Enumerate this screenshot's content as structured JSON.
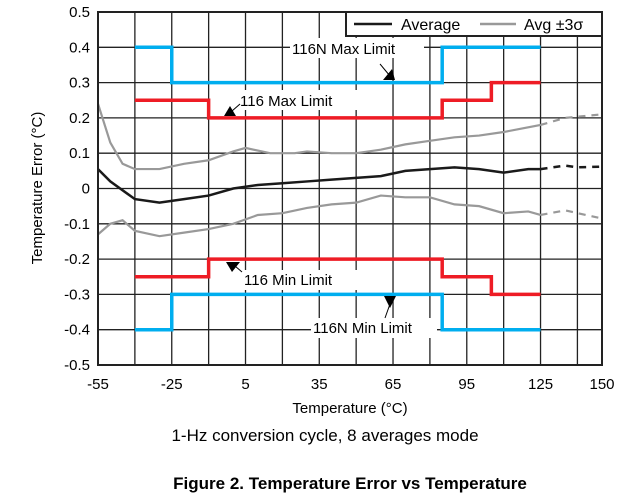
{
  "chart_data": {
    "type": "line",
    "title": "Figure 2. Temperature Error vs Temperature",
    "subtitle": "1-Hz conversion cycle, 8 averages mode",
    "xlabel": "Temperature (°C)",
    "ylabel": "Temperature Error (°C)",
    "xlim": [
      -55,
      150
    ],
    "ylim": [
      -0.5,
      0.5
    ],
    "xticks": [
      -55,
      -25,
      5,
      35,
      65,
      95,
      125,
      150
    ],
    "xgrid_step": 15,
    "yticks": [
      0.5,
      0.4,
      0.3,
      0.2,
      0.1,
      0,
      -0.1,
      -0.2,
      -0.3,
      -0.4,
      -0.5
    ],
    "ytick_labels": [
      "0.5",
      "0.4",
      "0.3",
      "0.2",
      "0.1",
      "0",
      "-0.1",
      "-0.2",
      "-0.3",
      "-0.4",
      "-0.5"
    ],
    "grid": true,
    "legend": {
      "placement": "top-right",
      "entries": [
        {
          "label": "Average",
          "color": "#1a1a1a"
        },
        {
          "label": "Avg ±3σ",
          "color": "#999999"
        }
      ]
    },
    "series": [
      {
        "name": "Average",
        "color": "#1a1a1a",
        "x": [
          -55,
          -50,
          -40,
          -30,
          -20,
          -10,
          0,
          10,
          20,
          30,
          40,
          50,
          60,
          70,
          80,
          90,
          100,
          110,
          120,
          125
        ],
        "y": [
          0.055,
          0.02,
          -0.03,
          -0.04,
          -0.03,
          -0.02,
          0,
          0.01,
          0.015,
          0.02,
          0.025,
          0.03,
          0.035,
          0.05,
          0.055,
          0.06,
          0.055,
          0.045,
          0.055,
          0.055
        ],
        "extrapolated": {
          "x": [
            125,
            135,
            140,
            150
          ],
          "y": [
            0.055,
            0.065,
            0.06,
            0.062
          ]
        }
      },
      {
        "name": "Avg +3σ",
        "color": "#999999",
        "x": [
          -55,
          -50,
          -45,
          -40,
          -30,
          -20,
          -10,
          0,
          5,
          15,
          25,
          30,
          40,
          50,
          60,
          70,
          80,
          90,
          100,
          110,
          125
        ],
        "y": [
          0.24,
          0.13,
          0.07,
          0.055,
          0.055,
          0.07,
          0.08,
          0.105,
          0.115,
          0.1,
          0.1,
          0.105,
          0.1,
          0.1,
          0.11,
          0.125,
          0.135,
          0.145,
          0.15,
          0.16,
          0.18
        ],
        "extrapolated": {
          "x": [
            125,
            135,
            150
          ],
          "y": [
            0.18,
            0.2,
            0.21
          ]
        }
      },
      {
        "name": "Avg -3σ",
        "color": "#999999",
        "x": [
          -55,
          -50,
          -45,
          -40,
          -30,
          -20,
          -10,
          0,
          10,
          20,
          30,
          40,
          50,
          60,
          70,
          80,
          90,
          100,
          110,
          120,
          125
        ],
        "y": [
          -0.13,
          -0.1,
          -0.09,
          -0.12,
          -0.135,
          -0.125,
          -0.115,
          -0.1,
          -0.075,
          -0.07,
          -0.055,
          -0.045,
          -0.04,
          -0.02,
          -0.025,
          -0.025,
          -0.045,
          -0.05,
          -0.07,
          -0.065,
          -0.075
        ],
        "extrapolated": {
          "x": [
            125,
            135,
            150
          ],
          "y": [
            -0.075,
            -0.062,
            -0.085
          ]
        }
      },
      {
        "name": "116N Max Limit",
        "color": "#00aeef",
        "x": [
          -40,
          -25,
          -25,
          85,
          85,
          125
        ],
        "y": [
          0.4,
          0.4,
          0.3,
          0.3,
          0.4,
          0.4
        ]
      },
      {
        "name": "116 Max Limit",
        "color": "#ee1c25",
        "x": [
          -40,
          -10,
          -10,
          85,
          85,
          105,
          105,
          125
        ],
        "y": [
          0.25,
          0.25,
          0.2,
          0.2,
          0.25,
          0.25,
          0.3,
          0.3
        ]
      },
      {
        "name": "116 Min Limit",
        "color": "#ee1c25",
        "x": [
          -40,
          -10,
          -10,
          85,
          85,
          105,
          105,
          125
        ],
        "y": [
          -0.25,
          -0.25,
          -0.2,
          -0.2,
          -0.25,
          -0.25,
          -0.3,
          -0.3
        ]
      },
      {
        "name": "116N Min Limit",
        "color": "#00aeef",
        "x": [
          -40,
          -25,
          -25,
          85,
          85,
          125
        ],
        "y": [
          -0.4,
          -0.4,
          -0.3,
          -0.3,
          -0.4,
          -0.4
        ]
      }
    ],
    "annotations": [
      "116N Max Limit",
      "116 Max Limit",
      "116 Min Limit",
      "116N Min Limit"
    ]
  }
}
